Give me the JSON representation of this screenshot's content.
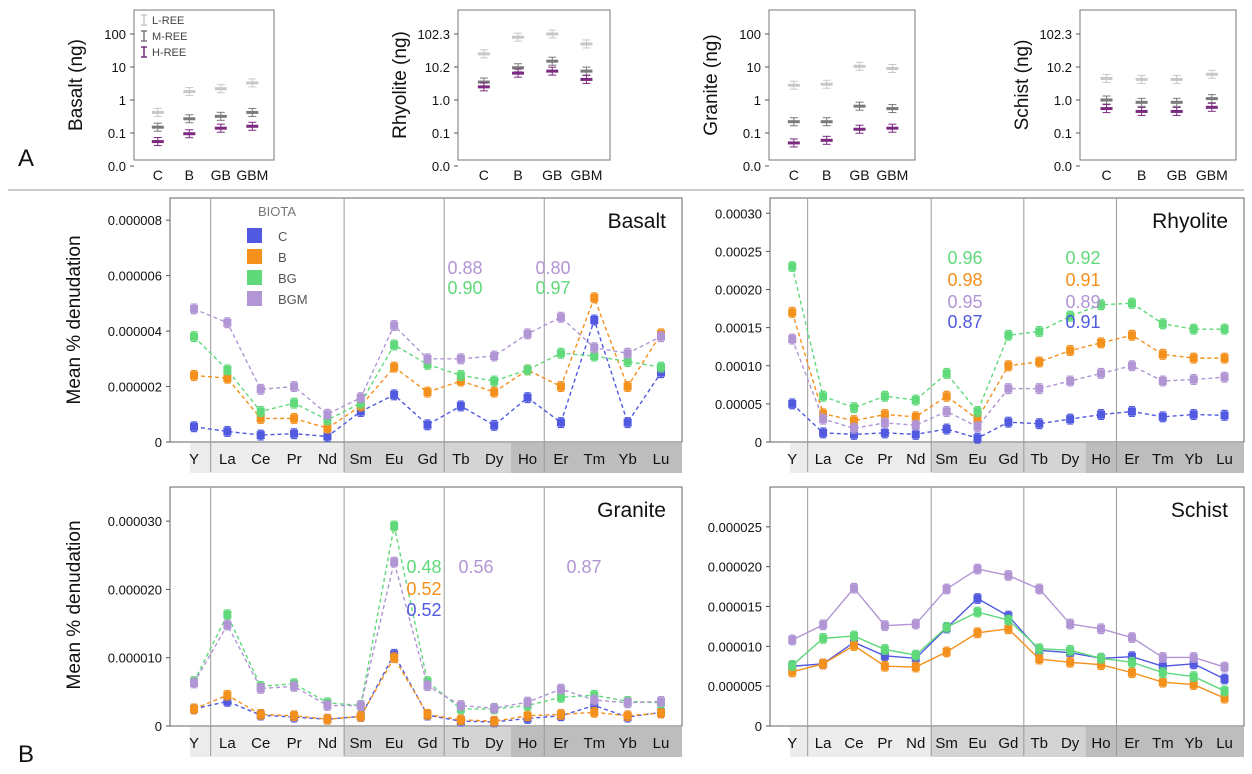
{
  "panel_labels": [
    "A",
    "B"
  ],
  "colors": {
    "L-REE": "#c8c8c8",
    "M-REE": "#7a7a7a",
    "H-REE": "#7b2a7f",
    "C": "#5059e0",
    "B": "#f4901c",
    "BG": "#5fd97a",
    "BGM": "#b195d4",
    "band_light": "#ececec",
    "band_mid": "#d4d4d4",
    "band_dark": "#bdbdbd"
  },
  "chart_data": [
    {
      "type": "scatter",
      "panel": "A",
      "ylabel": "Basalt (ng)",
      "yscale": "log",
      "yticks": [
        "100",
        "10",
        "1",
        "0.1",
        "0.0"
      ],
      "categories": [
        "C",
        "B",
        "GB",
        "GBM"
      ],
      "legend": [
        "L-REE",
        "M-REE",
        "H-REE"
      ],
      "series": [
        {
          "name": "L-REE",
          "values": [
            0.42,
            1.8,
            2.2,
            3.3
          ]
        },
        {
          "name": "M-REE",
          "values": [
            0.15,
            0.27,
            0.32,
            0.42
          ]
        },
        {
          "name": "H-REE",
          "values": [
            0.055,
            0.095,
            0.14,
            0.16
          ]
        }
      ]
    },
    {
      "type": "scatter",
      "panel": "A",
      "ylabel": "Rhyolite (ng)",
      "yscale": "log",
      "yticks": [
        "102.3",
        "10.2",
        "1.0",
        "0.1",
        "0.0"
      ],
      "categories": [
        "C",
        "B",
        "GB",
        "GBM"
      ],
      "series": [
        {
          "name": "L-REE",
          "values": [
            25,
            80,
            100,
            50
          ]
        },
        {
          "name": "M-REE",
          "values": [
            3.5,
            9.5,
            15,
            7.5
          ]
        },
        {
          "name": "H-REE",
          "values": [
            2.5,
            6.5,
            7.5,
            4.2
          ]
        }
      ]
    },
    {
      "type": "scatter",
      "panel": "A",
      "ylabel": "Granite (ng)",
      "yscale": "log",
      "yticks": [
        "100",
        "10",
        "1",
        "0.1",
        "0.0"
      ],
      "categories": [
        "C",
        "B",
        "GB",
        "GBM"
      ],
      "series": [
        {
          "name": "L-REE",
          "values": [
            2.8,
            3.0,
            10.5,
            9.0
          ]
        },
        {
          "name": "M-REE",
          "values": [
            0.22,
            0.22,
            0.65,
            0.55
          ]
        },
        {
          "name": "H-REE",
          "values": [
            0.05,
            0.06,
            0.13,
            0.14
          ]
        }
      ]
    },
    {
      "type": "scatter",
      "panel": "A",
      "ylabel": "Schist (ng)",
      "yscale": "log",
      "yticks": [
        "102.3",
        "10.2",
        "1.0",
        "0.1",
        "0.0"
      ],
      "categories": [
        "C",
        "B",
        "GB",
        "GBM"
      ],
      "series": [
        {
          "name": "L-REE",
          "values": [
            4.5,
            4.2,
            4.2,
            6.0
          ]
        },
        {
          "name": "M-REE",
          "values": [
            1.0,
            0.85,
            0.85,
            1.1
          ]
        },
        {
          "name": "H-REE",
          "values": [
            0.55,
            0.45,
            0.45,
            0.6
          ]
        }
      ]
    },
    {
      "type": "line",
      "panel": "B",
      "title": "Basalt",
      "ylabel": "Mean % denudation",
      "legend_title": "BIOTA",
      "legend": [
        "C",
        "B",
        "BG",
        "BGM"
      ],
      "yticks": [
        "0",
        "0.000002",
        "0.000004",
        "0.000006",
        "0.000008"
      ],
      "ylim": [
        0,
        8.8e-06
      ],
      "categories": [
        "Y",
        "La",
        "Ce",
        "Pr",
        "Nd",
        "Sm",
        "Eu",
        "Gd",
        "Tb",
        "Dy",
        "Ho",
        "Er",
        "Tm",
        "Yb",
        "Lu"
      ],
      "series": [
        {
          "name": "C",
          "values": [
            5.5e-07,
            3.8e-07,
            2.5e-07,
            3e-07,
            2e-07,
            1.1e-06,
            1.7e-06,
            6.2e-07,
            1.3e-06,
            6e-07,
            1.6e-06,
            7e-07,
            4.4e-06,
            7e-07,
            2.5e-06
          ]
        },
        {
          "name": "B",
          "values": [
            2.4e-06,
            2.3e-06,
            8.5e-07,
            8.5e-07,
            5e-07,
            1.3e-06,
            2.7e-06,
            1.8e-06,
            2.2e-06,
            1.8e-06,
            2.6e-06,
            2e-06,
            5.2e-06,
            2e-06,
            3.9e-06
          ]
        },
        {
          "name": "BG",
          "values": [
            3.8e-06,
            2.6e-06,
            1.1e-06,
            1.4e-06,
            8e-07,
            1.4e-06,
            3.5e-06,
            2.8e-06,
            2.4e-06,
            2.2e-06,
            2.6e-06,
            3.2e-06,
            3.1e-06,
            2.9e-06,
            2.7e-06
          ]
        },
        {
          "name": "BGM",
          "values": [
            4.8e-06,
            4.3e-06,
            1.9e-06,
            2e-06,
            1e-06,
            1.6e-06,
            4.2e-06,
            3e-06,
            3e-06,
            3.1e-06,
            3.9e-06,
            4.5e-06,
            3.4e-06,
            3.2e-06,
            3.8e-06
          ]
        }
      ],
      "annotations": [
        {
          "text": "0.88",
          "series": "BGM"
        },
        {
          "text": "0.90",
          "series": "BG"
        },
        {
          "text": "0.80",
          "series": "BGM"
        },
        {
          "text": "0.97",
          "series": "BG"
        }
      ]
    },
    {
      "type": "line",
      "panel": "B",
      "title": "Rhyolite",
      "yticks": [
        "0",
        "0.00005",
        "0.00010",
        "0.00015",
        "0.00020",
        "0.00025",
        "0.00030"
      ],
      "ylim": [
        0,
        0.00032
      ],
      "categories": [
        "Y",
        "La",
        "Ce",
        "Pr",
        "Nd",
        "Sm",
        "Eu",
        "Gd",
        "Tb",
        "Dy",
        "Ho",
        "Er",
        "Tm",
        "Yb",
        "Lu"
      ],
      "series": [
        {
          "name": "C",
          "values": [
            5e-05,
            1.2e-05,
            1e-05,
            1.2e-05,
            1e-05,
            1.7e-05,
            5e-06,
            2.6e-05,
            2.4e-05,
            3e-05,
            3.6e-05,
            4e-05,
            3.3e-05,
            3.6e-05,
            3.5e-05
          ]
        },
        {
          "name": "B",
          "values": [
            0.00017,
            3.7e-05,
            2.8e-05,
            3.6e-05,
            3.3e-05,
            6e-05,
            3e-05,
            0.0001,
            0.000105,
            0.00012,
            0.00013,
            0.00014,
            0.000115,
            0.00011,
            0.00011
          ]
        },
        {
          "name": "BG",
          "values": [
            0.00023,
            6e-05,
            4.5e-05,
            6e-05,
            5.5e-05,
            9e-05,
            4e-05,
            0.00014,
            0.000145,
            0.000165,
            0.00018,
            0.000182,
            0.000155,
            0.000148,
            0.000148
          ]
        },
        {
          "name": "BGM",
          "values": [
            0.000135,
            3e-05,
            1.8e-05,
            2.5e-05,
            2.2e-05,
            4e-05,
            2e-05,
            7e-05,
            7e-05,
            8e-05,
            9e-05,
            0.0001,
            8e-05,
            8.2e-05,
            8.5e-05
          ]
        }
      ],
      "annotations": [
        {
          "text": "0.96",
          "series": "BG"
        },
        {
          "text": "0.98",
          "series": "B"
        },
        {
          "text": "0.95",
          "series": "BGM"
        },
        {
          "text": "0.87",
          "series": "C"
        },
        {
          "text": "0.92",
          "series": "BG"
        },
        {
          "text": "0.91",
          "series": "B"
        },
        {
          "text": "0.89",
          "series": "BGM"
        },
        {
          "text": "0.91",
          "series": "C"
        }
      ]
    },
    {
      "type": "line",
      "panel": "B",
      "title": "Granite",
      "ylabel": "Mean % denudation",
      "yticks": [
        "0",
        "0.000010",
        "0.000020",
        "0.000030"
      ],
      "ylim": [
        0,
        3.5e-05
      ],
      "categories": [
        "Y",
        "La",
        "Ce",
        "Pr",
        "Nd",
        "Sm",
        "Eu",
        "Gd",
        "Tb",
        "Dy",
        "Ho",
        "Er",
        "Tm",
        "Yb",
        "Lu"
      ],
      "series": [
        {
          "name": "C",
          "values": [
            2.5e-06,
            3.6e-06,
            1.6e-06,
            1.3e-06,
            1e-06,
            1.4e-06,
            1.05e-05,
            1.6e-06,
            7e-07,
            6e-07,
            1.1e-06,
            1.5e-06,
            3e-06,
            1.3e-06,
            2e-06
          ]
        },
        {
          "name": "B",
          "values": [
            2.5e-06,
            4.5e-06,
            1.7e-06,
            1.5e-06,
            1e-06,
            1.4e-06,
            1e-05,
            1.7e-06,
            9e-07,
            7e-07,
            1.5e-06,
            1.7e-06,
            2e-06,
            1.5e-06,
            1.9e-06
          ]
        },
        {
          "name": "BG",
          "values": [
            6.5e-06,
            1.63e-05,
            5.8e-06,
            6.2e-06,
            3.4e-06,
            3e-06,
            2.93e-05,
            6.5e-06,
            2.5e-06,
            2.5e-06,
            3e-06,
            4.2e-06,
            4.5e-06,
            3.6e-06,
            3.4e-06
          ]
        },
        {
          "name": "BGM",
          "values": [
            6.3e-06,
            1.48e-05,
            5.5e-06,
            5.8e-06,
            3e-06,
            3e-06,
            2.4e-05,
            5.9e-06,
            3e-06,
            2.6e-06,
            3.5e-06,
            5.4e-06,
            3.8e-06,
            3.4e-06,
            3.6e-06
          ]
        }
      ],
      "annotations": [
        {
          "text": "0.48",
          "series": "BG"
        },
        {
          "text": "0.52",
          "series": "B"
        },
        {
          "text": "0.52",
          "series": "C"
        },
        {
          "text": "0.56",
          "series": "BGM"
        },
        {
          "text": "0.87",
          "series": "BGM"
        }
      ]
    },
    {
      "type": "line",
      "panel": "B",
      "title": "Schist",
      "yticks": [
        "0",
        "0.000005",
        "0.000010",
        "0.000015",
        "0.000020",
        "0.000025"
      ],
      "ylim": [
        0,
        3e-05
      ],
      "categories": [
        "Y",
        "La",
        "Ce",
        "Pr",
        "Nd",
        "Sm",
        "Eu",
        "Gd",
        "Tb",
        "Dy",
        "Ho",
        "Er",
        "Tm",
        "Yb",
        "Lu"
      ],
      "series": [
        {
          "name": "C",
          "values": [
            7.5e-06,
            7.8e-06,
            1.05e-05,
            8.8e-06,
            8.5e-06,
            1.23e-05,
            1.6e-05,
            1.38e-05,
            9.5e-06,
            9.2e-06,
            8.5e-06,
            8.7e-06,
            7.5e-06,
            7.8e-06,
            5.9e-06
          ]
        },
        {
          "name": "B",
          "values": [
            6.8e-06,
            7.8e-06,
            1.01e-05,
            7.5e-06,
            7.4e-06,
            9.3e-06,
            1.17e-05,
            1.22e-05,
            8.4e-06,
            8e-06,
            7.7e-06,
            6.7e-06,
            5.5e-06,
            5.2e-06,
            3.5e-06
          ]
        },
        {
          "name": "BG",
          "values": [
            7.6e-06,
            1.1e-05,
            1.13e-05,
            9.6e-06,
            8.9e-06,
            1.24e-05,
            1.43e-05,
            1.33e-05,
            9.7e-06,
            9.5e-06,
            8.5e-06,
            8e-06,
            6.7e-06,
            6.2e-06,
            4.4e-06
          ]
        },
        {
          "name": "BGM",
          "values": [
            1.08e-05,
            1.27e-05,
            1.73e-05,
            1.26e-05,
            1.28e-05,
            1.72e-05,
            1.97e-05,
            1.89e-05,
            1.72e-05,
            1.28e-05,
            1.22e-05,
            1.11e-05,
            8.6e-06,
            8.6e-06,
            7.4e-06
          ]
        }
      ]
    }
  ]
}
